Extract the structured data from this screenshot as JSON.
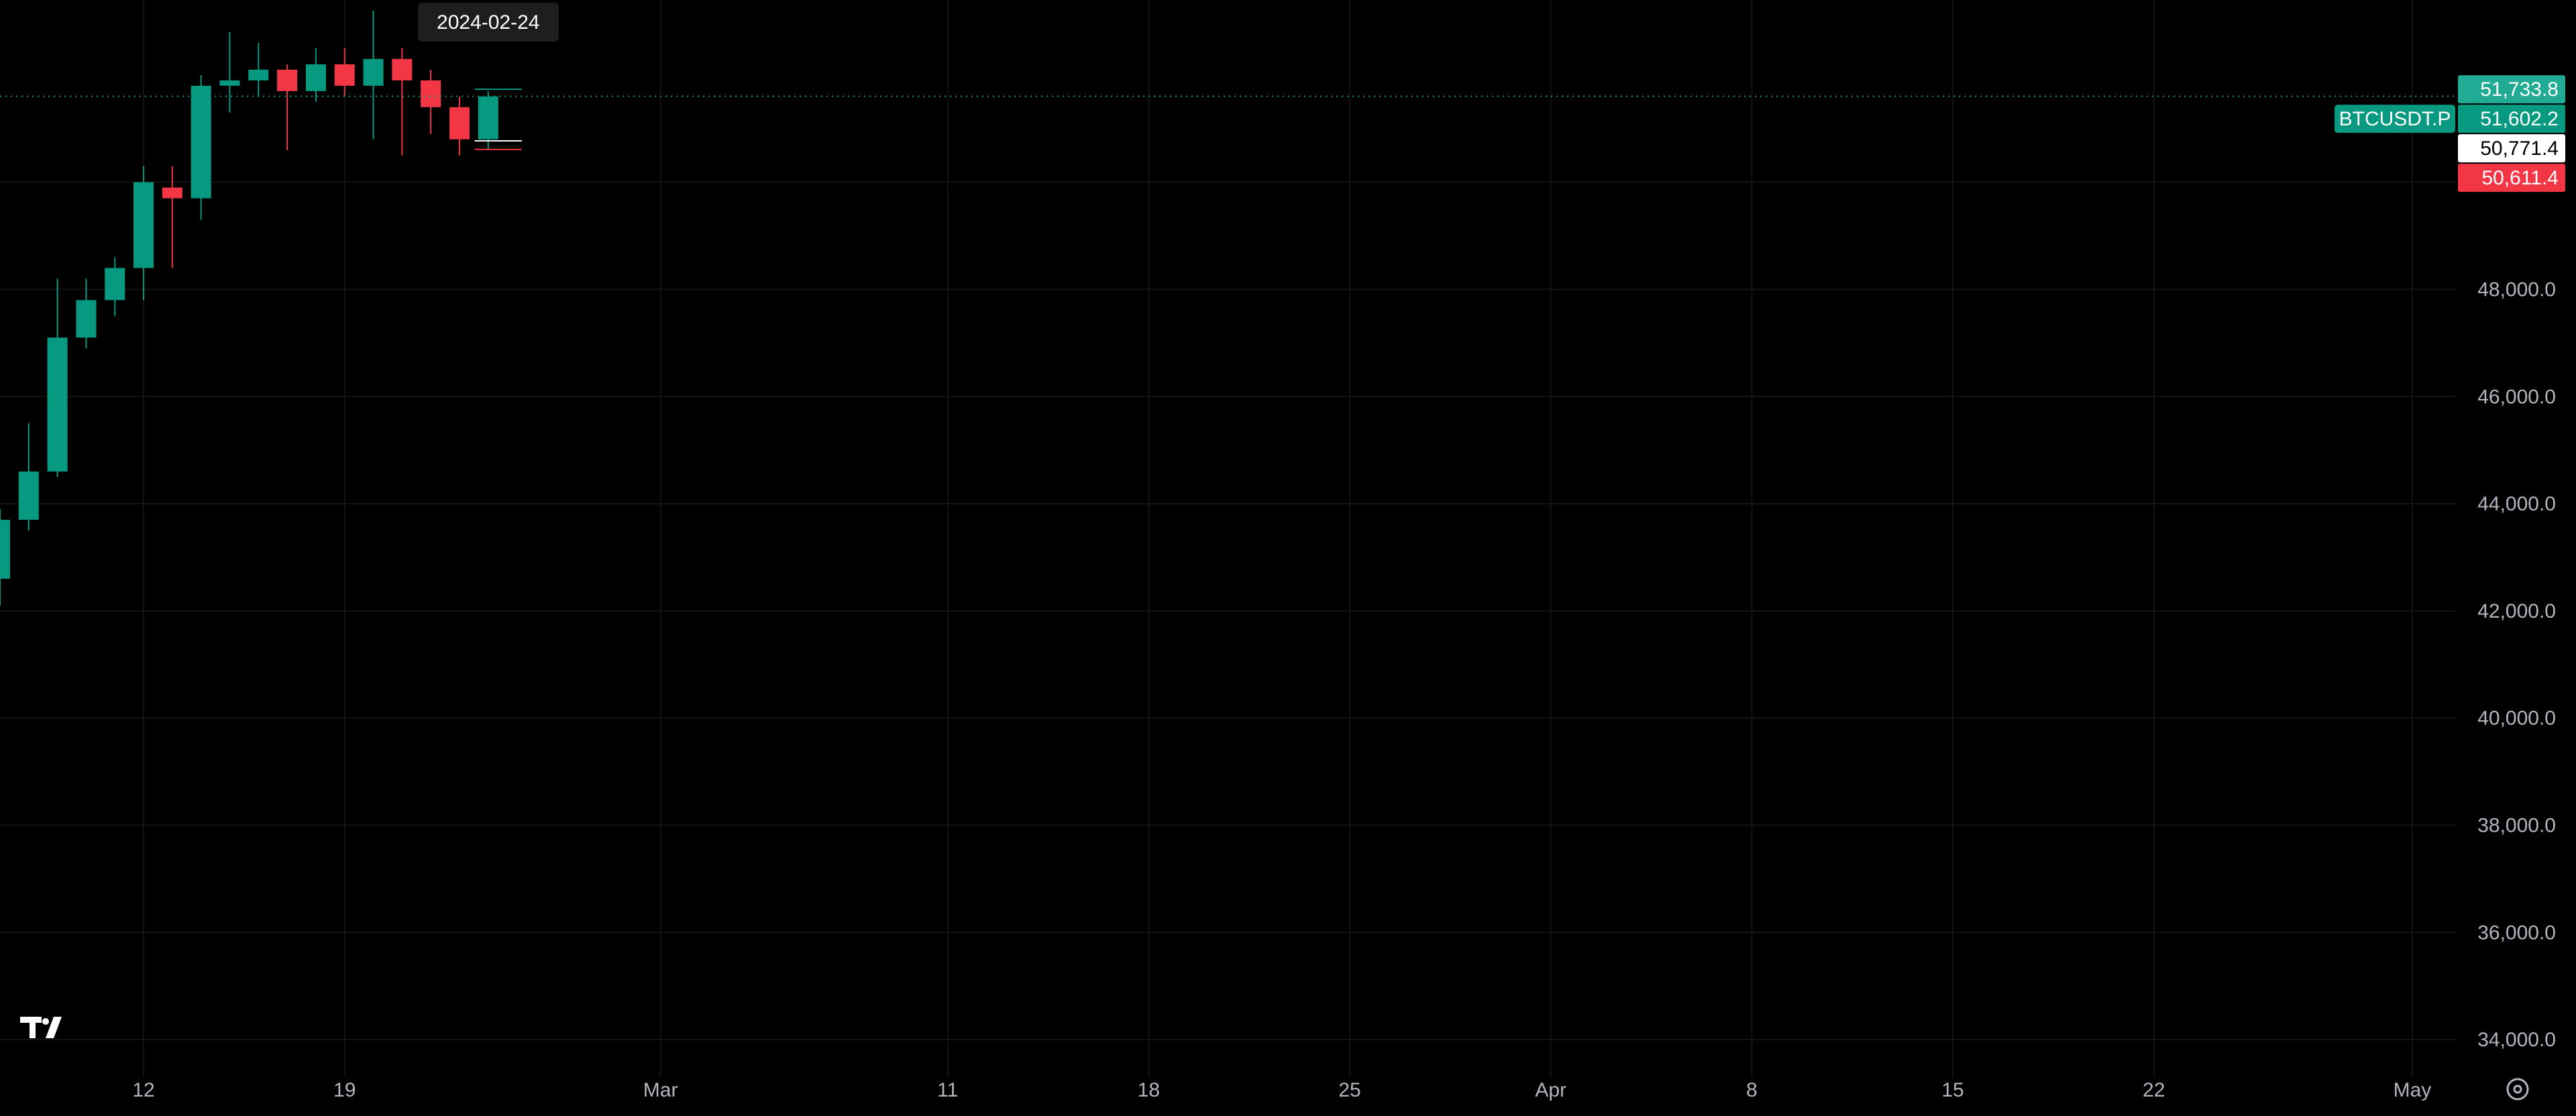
{
  "chart_data": {
    "type": "candlestick",
    "symbol": "BTCUSDT.P",
    "y_range": [
      33300,
      53400
    ],
    "y_ticks": [
      34000,
      36000,
      38000,
      40000,
      42000,
      44000,
      46000,
      48000,
      50000
    ],
    "x_range": [
      "2024-02-07",
      "2024-05-01"
    ],
    "x_ticks": [
      {
        "label": "12",
        "date": "2024-02-12"
      },
      {
        "label": "19",
        "date": "2024-02-19"
      },
      {
        "label": "Mar",
        "date": "2024-03-01"
      },
      {
        "label": "11",
        "date": "2024-03-11"
      },
      {
        "label": "18",
        "date": "2024-03-18"
      },
      {
        "label": "25",
        "date": "2024-03-25"
      },
      {
        "label": "Apr",
        "date": "2024-04-01"
      },
      {
        "label": "8",
        "date": "2024-04-08"
      },
      {
        "label": "15",
        "date": "2024-04-15"
      },
      {
        "label": "22",
        "date": "2024-04-22"
      },
      {
        "label": "May",
        "date": "2024-05-01"
      }
    ],
    "hover_date_label": "2024-02-24",
    "candles": [
      {
        "date": "2024-02-07",
        "open": 42600,
        "high": 43900,
        "low": 42100,
        "close": 43700
      },
      {
        "date": "2024-02-08",
        "open": 43700,
        "high": 45500,
        "low": 43500,
        "close": 44600
      },
      {
        "date": "2024-02-09",
        "open": 44600,
        "high": 48200,
        "low": 44500,
        "close": 47100
      },
      {
        "date": "2024-02-10",
        "open": 47100,
        "high": 48200,
        "low": 46900,
        "close": 47800
      },
      {
        "date": "2024-02-11",
        "open": 47800,
        "high": 48600,
        "low": 47500,
        "close": 48400
      },
      {
        "date": "2024-02-12",
        "open": 48400,
        "high": 50300,
        "low": 47800,
        "close": 50000
      },
      {
        "date": "2024-02-13",
        "open": 49900,
        "high": 50300,
        "low": 48400,
        "close": 49700
      },
      {
        "date": "2024-02-14",
        "open": 49700,
        "high": 52000,
        "low": 49300,
        "close": 51800
      },
      {
        "date": "2024-02-15",
        "open": 51800,
        "high": 52800,
        "low": 51300,
        "close": 51900
      },
      {
        "date": "2024-02-16",
        "open": 51900,
        "high": 52600,
        "low": 51600,
        "close": 52100
      },
      {
        "date": "2024-02-17",
        "open": 52100,
        "high": 52200,
        "low": 50600,
        "close": 51700
      },
      {
        "date": "2024-02-18",
        "open": 51700,
        "high": 52500,
        "low": 51500,
        "close": 52200
      },
      {
        "date": "2024-02-19",
        "open": 52200,
        "high": 52500,
        "low": 51600,
        "close": 51800
      },
      {
        "date": "2024-02-20",
        "open": 51800,
        "high": 53200,
        "low": 50800,
        "close": 52300
      },
      {
        "date": "2024-02-21",
        "open": 52300,
        "high": 52500,
        "low": 50500,
        "close": 51900
      },
      {
        "date": "2024-02-22",
        "open": 51900,
        "high": 52100,
        "low": 50900,
        "close": 51400
      },
      {
        "date": "2024-02-23",
        "open": 51400,
        "high": 51600,
        "low": 50500,
        "close": 50800
      },
      {
        "date": "2024-02-24",
        "open": 50800,
        "high": 51700,
        "low": 50600,
        "close": 51600
      }
    ],
    "price_labels": [
      {
        "value": "51,733.8",
        "price": 51733.8,
        "bg": "#22ab94"
      },
      {
        "value": "51,602.2",
        "price": 51602.2,
        "bg": "#089981",
        "symbol_badge": "BTCUSDT.P"
      },
      {
        "value": "50,771.4",
        "price": 50771.4,
        "bg": "#ffffff"
      },
      {
        "value": "50,611.4",
        "price": 50611.4,
        "bg": "#f23645"
      }
    ],
    "colors": {
      "background": "#000000",
      "grid": "#141414",
      "up": "#089981",
      "down": "#f23645",
      "axis_text": "#b2b5be",
      "last_price_line": "#089981",
      "tooltip_bg": "#1e1e1e"
    },
    "grid": true,
    "logo": "tradingview-logo",
    "settings_icon": "gear-icon"
  }
}
